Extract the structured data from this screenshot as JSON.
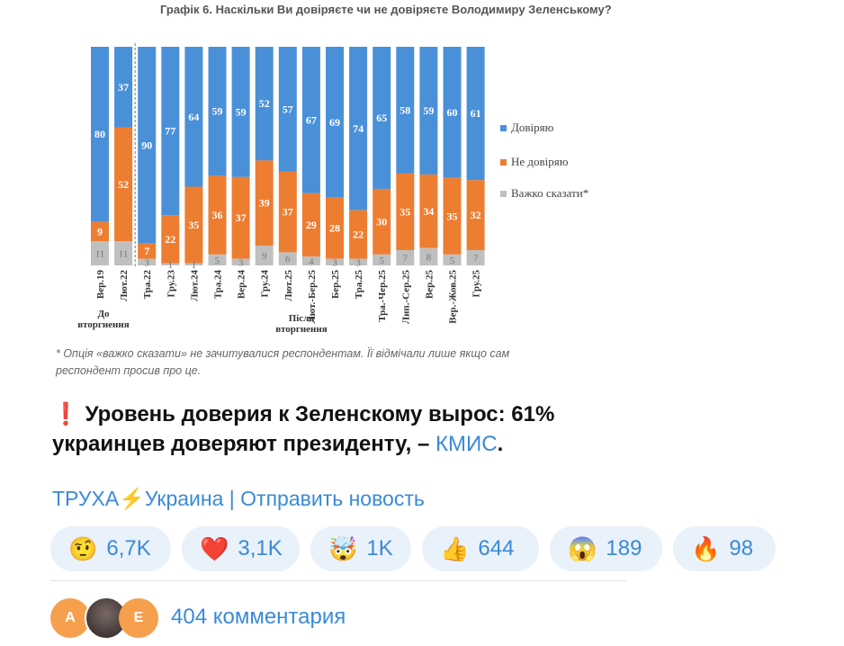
{
  "chart_data": {
    "type": "bar",
    "stacked": true,
    "title": "Графік 6. Наскільки Ви довіряєте чи не довіряєте Володимиру Зеленському?",
    "categories": [
      "Вер.19",
      "Лют.22",
      "Тра.22",
      "Гру.23",
      "Лют.24",
      "Тра.24",
      "Вер.24",
      "Гру.24",
      "Лют.25",
      "Лют.-Бер.25",
      "Бер.25",
      "Тра.25",
      "Тра.-Чер.25",
      "Лип.-Сер.25",
      "Вер.25",
      "Вер.-Жов.25",
      "Гру.25"
    ],
    "series": [
      {
        "name": "Довіряю",
        "color": "#4a90d9",
        "values": [
          80,
          37,
          90,
          77,
          64,
          59,
          59,
          52,
          57,
          67,
          69,
          74,
          65,
          58,
          59,
          60,
          61
        ]
      },
      {
        "name": "Не довіряю",
        "color": "#ed7d31",
        "values": [
          9,
          52,
          7,
          22,
          35,
          36,
          37,
          39,
          37,
          29,
          28,
          22,
          30,
          35,
          34,
          35,
          32
        ]
      },
      {
        "name": "Важко сказати*",
        "color": "#bfbfbf",
        "values": [
          11,
          11,
          3,
          1,
          1,
          5,
          3,
          9,
          6,
          4,
          3,
          3,
          5,
          7,
          8,
          5,
          7
        ]
      }
    ],
    "group_labels": [
      "До вторгнення",
      "Після вторгнення"
    ],
    "legend_position": "right",
    "footnote": [
      "* Опція «важко сказати» не зачитувалися респондентам. Її відмічали лише якщо сам",
      "респондент просив про це."
    ]
  },
  "message": {
    "alert_icon": "❗",
    "line1": "Уровень доверия к Зеленскому вырос: 61%",
    "line2": "украинцев доверяют президенту, –",
    "source_link": "КМИС",
    "end": "."
  },
  "signature": {
    "channel": "ТРУХА",
    "bolt": "⚡",
    "region": "Украина",
    "divider": "|",
    "send_news": "Отправить новость"
  },
  "reactions": [
    {
      "emoji": "🤨",
      "count": "6,7K"
    },
    {
      "emoji": "❤️",
      "count": "3,1K"
    },
    {
      "emoji": "🤯",
      "count": "1K"
    },
    {
      "emoji": "👍",
      "count": "644"
    },
    {
      "emoji": "😱",
      "count": "189"
    },
    {
      "emoji": "🔥",
      "count": "98"
    }
  ],
  "comments": {
    "avatars": [
      "А",
      "",
      "Е"
    ],
    "label": "404 комментария"
  }
}
